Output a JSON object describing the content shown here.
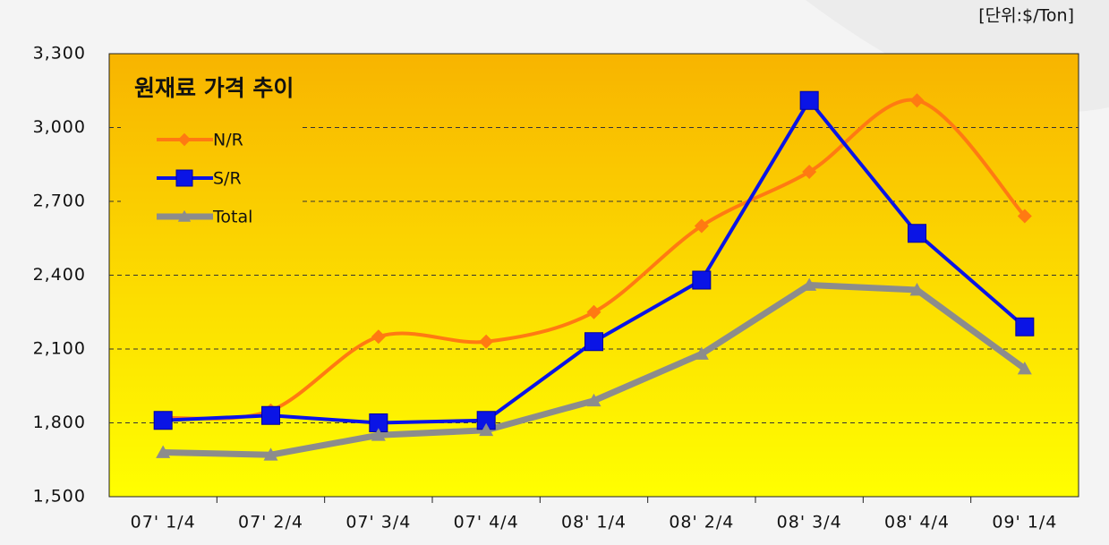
{
  "chart_data": {
    "type": "line",
    "title": "원재료 가격 추이",
    "unit_label": "[단위:$/Ton]",
    "categories": [
      "07' 1/4",
      "07' 2/4",
      "07' 3/4",
      "07' 4/4",
      "08' 1/4",
      "08' 2/4",
      "08' 3/4",
      "08' 4/4",
      "09' 1/4"
    ],
    "series": [
      {
        "name": "N/R",
        "color": "#ff7a12",
        "marker": "diamond",
        "smooth": true,
        "values": [
          1820,
          1850,
          2150,
          2130,
          2250,
          2600,
          2820,
          3110,
          2640
        ]
      },
      {
        "name": "S/R",
        "color": "#0a14e6",
        "marker": "square",
        "smooth": false,
        "values": [
          1810,
          1830,
          1800,
          1810,
          2130,
          2380,
          3110,
          2570,
          2190
        ]
      },
      {
        "name": "Total",
        "color": "#8c8c8c",
        "marker": "triangle",
        "smooth": false,
        "values": [
          1680,
          1670,
          1750,
          1770,
          1890,
          2080,
          2360,
          2340,
          2020
        ]
      }
    ],
    "ylim": [
      1500,
      3300
    ],
    "yticks": [
      {
        "value": 1500,
        "label": "1,500"
      },
      {
        "value": 1800,
        "label": "1,800"
      },
      {
        "value": 2100,
        "label": "2,100"
      },
      {
        "value": 2400,
        "label": "2,400"
      },
      {
        "value": 2700,
        "label": "2,700"
      },
      {
        "value": 3000,
        "label": "3,000"
      },
      {
        "value": 3300,
        "label": "3,300"
      }
    ],
    "grid": true,
    "legend": "upper left"
  }
}
